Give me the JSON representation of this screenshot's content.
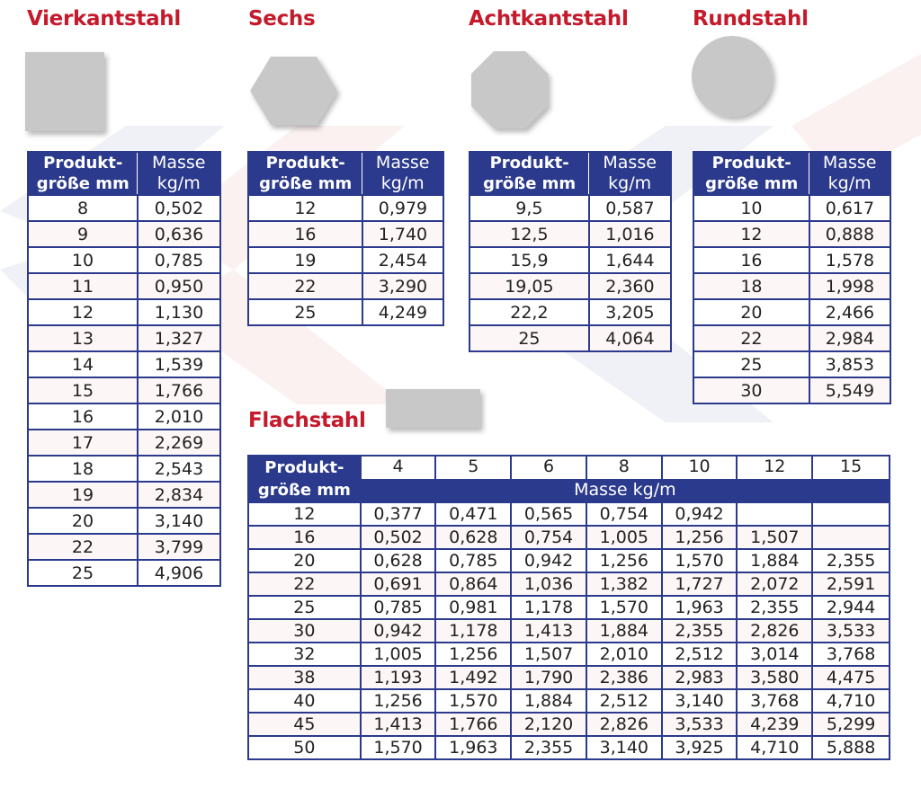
{
  "header_label": "Produkt-\ngröße mm",
  "mass_label": "Masse\nkg/m",
  "vierkant": {
    "title": "Vierkantstahl",
    "rows": [
      [
        "8",
        "0,502"
      ],
      [
        "9",
        "0,636"
      ],
      [
        "10",
        "0,785"
      ],
      [
        "11",
        "0,950"
      ],
      [
        "12",
        "1,130"
      ],
      [
        "13",
        "1,327"
      ],
      [
        "14",
        "1,539"
      ],
      [
        "15",
        "1,766"
      ],
      [
        "16",
        "2,010"
      ],
      [
        "17",
        "2,269"
      ],
      [
        "18",
        "2,543"
      ],
      [
        "19",
        "2,834"
      ],
      [
        "20",
        "3,140"
      ],
      [
        "22",
        "3,799"
      ],
      [
        "25",
        "4,906"
      ]
    ]
  },
  "sechs": {
    "title": "Sechs",
    "rows": [
      [
        "12",
        "0,979"
      ],
      [
        "16",
        "1,740"
      ],
      [
        "19",
        "2,454"
      ],
      [
        "22",
        "3,290"
      ],
      [
        "25",
        "4,249"
      ]
    ]
  },
  "achtkant": {
    "title": "Achtkantstahl",
    "rows": [
      [
        "9,5",
        "0,587"
      ],
      [
        "12,5",
        "1,016"
      ],
      [
        "15,9",
        "1,644"
      ],
      [
        "19,05",
        "2,360"
      ],
      [
        "22,2",
        "3,205"
      ],
      [
        "25",
        "4,064"
      ]
    ]
  },
  "rund": {
    "title": "Rundstahl",
    "rows": [
      [
        "10",
        "0,617"
      ],
      [
        "12",
        "0,888"
      ],
      [
        "16",
        "1,578"
      ],
      [
        "18",
        "1,998"
      ],
      [
        "20",
        "2,466"
      ],
      [
        "22",
        "2,984"
      ],
      [
        "25",
        "3,853"
      ],
      [
        "30",
        "5,549"
      ]
    ]
  },
  "flach": {
    "title": "Flachstahl",
    "mass_header": "Masse kg/m",
    "columns": [
      "4",
      "5",
      "6",
      "8",
      "10",
      "12",
      "15"
    ],
    "rows": [
      [
        "12",
        "0,377",
        "0,471",
        "0,565",
        "0,754",
        "0,942",
        "",
        ""
      ],
      [
        "16",
        "0,502",
        "0,628",
        "0,754",
        "1,005",
        "1,256",
        "1,507",
        ""
      ],
      [
        "20",
        "0,628",
        "0,785",
        "0,942",
        "1,256",
        "1,570",
        "1,884",
        "2,355"
      ],
      [
        "22",
        "0,691",
        "0,864",
        "1,036",
        "1,382",
        "1,727",
        "2,072",
        "2,591"
      ],
      [
        "25",
        "0,785",
        "0,981",
        "1,178",
        "1,570",
        "1,963",
        "2,355",
        "2,944"
      ],
      [
        "30",
        "0,942",
        "1,178",
        "1,413",
        "1,884",
        "2,355",
        "2,826",
        "3,533"
      ],
      [
        "32",
        "1,005",
        "1,256",
        "1,507",
        "2,010",
        "2,512",
        "3,014",
        "3,768"
      ],
      [
        "38",
        "1,193",
        "1,492",
        "1,790",
        "2,386",
        "2,983",
        "3,580",
        "4,475"
      ],
      [
        "40",
        "1,256",
        "1,570",
        "1,884",
        "2,512",
        "3,140",
        "3,768",
        "4,710"
      ],
      [
        "45",
        "1,413",
        "1,766",
        "2,120",
        "2,826",
        "3,533",
        "4,239",
        "5,299"
      ],
      [
        "50",
        "1,570",
        "1,963",
        "2,355",
        "3,140",
        "3,925",
        "4,710",
        "5,888"
      ]
    ]
  },
  "colors": {
    "title_red": "#c41a2b",
    "header_blue": "#2b3a8c",
    "shape_gray": "#c8c8c8",
    "row_tint": "#fdf6f6"
  }
}
